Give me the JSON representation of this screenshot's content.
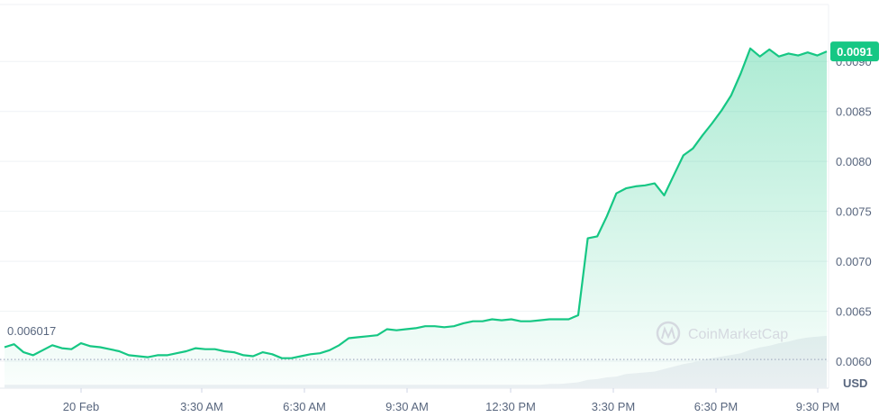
{
  "chart_data": {
    "type": "area",
    "x_ticks": [
      "20 Feb",
      "3:30 AM",
      "6:30 AM",
      "9:30 AM",
      "12:30 PM",
      "3:30 PM",
      "6:30 PM",
      "9:30 PM"
    ],
    "y_ticks": [
      0.006,
      0.0065,
      0.007,
      0.0075,
      0.008,
      0.0085,
      0.009
    ],
    "y_tick_labels": [
      "0.0060",
      "0.0065",
      "0.0070",
      "0.0075",
      "0.0080",
      "0.0085",
      "0.0090"
    ],
    "ylim": [
      0.00573,
      0.00957
    ],
    "currency": "USD",
    "open_price": 0.006017,
    "open_label": "0.006017",
    "current_price": 0.0091,
    "current_label": "0.0091",
    "line_color": "#16c784",
    "fill_color": "#16c784",
    "grid": true,
    "y_axis_position": "right",
    "watermark": "CoinMarketCap",
    "price_series": [
      0.00614,
      0.00617,
      0.00609,
      0.00606,
      0.00611,
      0.00616,
      0.00613,
      0.00612,
      0.00618,
      0.00615,
      0.00614,
      0.00612,
      0.0061,
      0.00606,
      0.00605,
      0.00604,
      0.00606,
      0.00606,
      0.00608,
      0.0061,
      0.00613,
      0.00612,
      0.00612,
      0.0061,
      0.00609,
      0.00606,
      0.00605,
      0.00609,
      0.00607,
      0.00603,
      0.00603,
      0.00605,
      0.00607,
      0.00608,
      0.00611,
      0.00616,
      0.00623,
      0.00624,
      0.00625,
      0.00626,
      0.00632,
      0.00631,
      0.00632,
      0.00633,
      0.00635,
      0.00635,
      0.00634,
      0.00635,
      0.00638,
      0.0064,
      0.0064,
      0.00642,
      0.00641,
      0.00642,
      0.0064,
      0.0064,
      0.00641,
      0.00642,
      0.00642,
      0.00642,
      0.00646,
      0.00723,
      0.00725,
      0.00745,
      0.00768,
      0.00773,
      0.00775,
      0.00776,
      0.00778,
      0.00766,
      0.00786,
      0.00806,
      0.00813,
      0.00826,
      0.00838,
      0.00851,
      0.00866,
      0.00888,
      0.00913,
      0.00905,
      0.00912,
      0.00905,
      0.00908,
      0.00906,
      0.00909,
      0.00906,
      0.0091
    ],
    "volume_series": [
      0.4,
      0.4,
      0.4,
      0.4,
      0.4,
      0.4,
      0.4,
      0.4,
      0.4,
      0.4,
      0.4,
      0.4,
      0.4,
      0.4,
      0.4,
      0.4,
      0.4,
      0.4,
      0.4,
      0.4,
      0.4,
      0.4,
      0.4,
      0.4,
      0.4,
      0.4,
      0.4,
      0.4,
      0.4,
      0.4,
      0.4,
      0.4,
      0.4,
      0.4,
      0.4,
      0.4,
      0.4,
      0.4,
      0.4,
      0.4,
      0.4,
      0.4,
      0.4,
      0.4,
      0.4,
      0.4,
      0.4,
      0.4,
      0.4,
      0.4,
      0.4,
      0.4,
      0.4,
      0.4,
      0.4,
      0.4,
      0.4,
      0.5,
      0.5,
      0.6,
      0.7,
      1.0,
      1.1,
      1.3,
      1.4,
      1.7,
      1.8,
      1.9,
      2.0,
      2.3,
      2.6,
      2.9,
      3.1,
      3.4,
      3.6,
      3.8,
      4.0,
      4.2,
      4.6,
      4.9,
      5.1,
      5.4,
      5.6,
      5.9,
      6.1,
      6.2,
      6.3
    ]
  }
}
